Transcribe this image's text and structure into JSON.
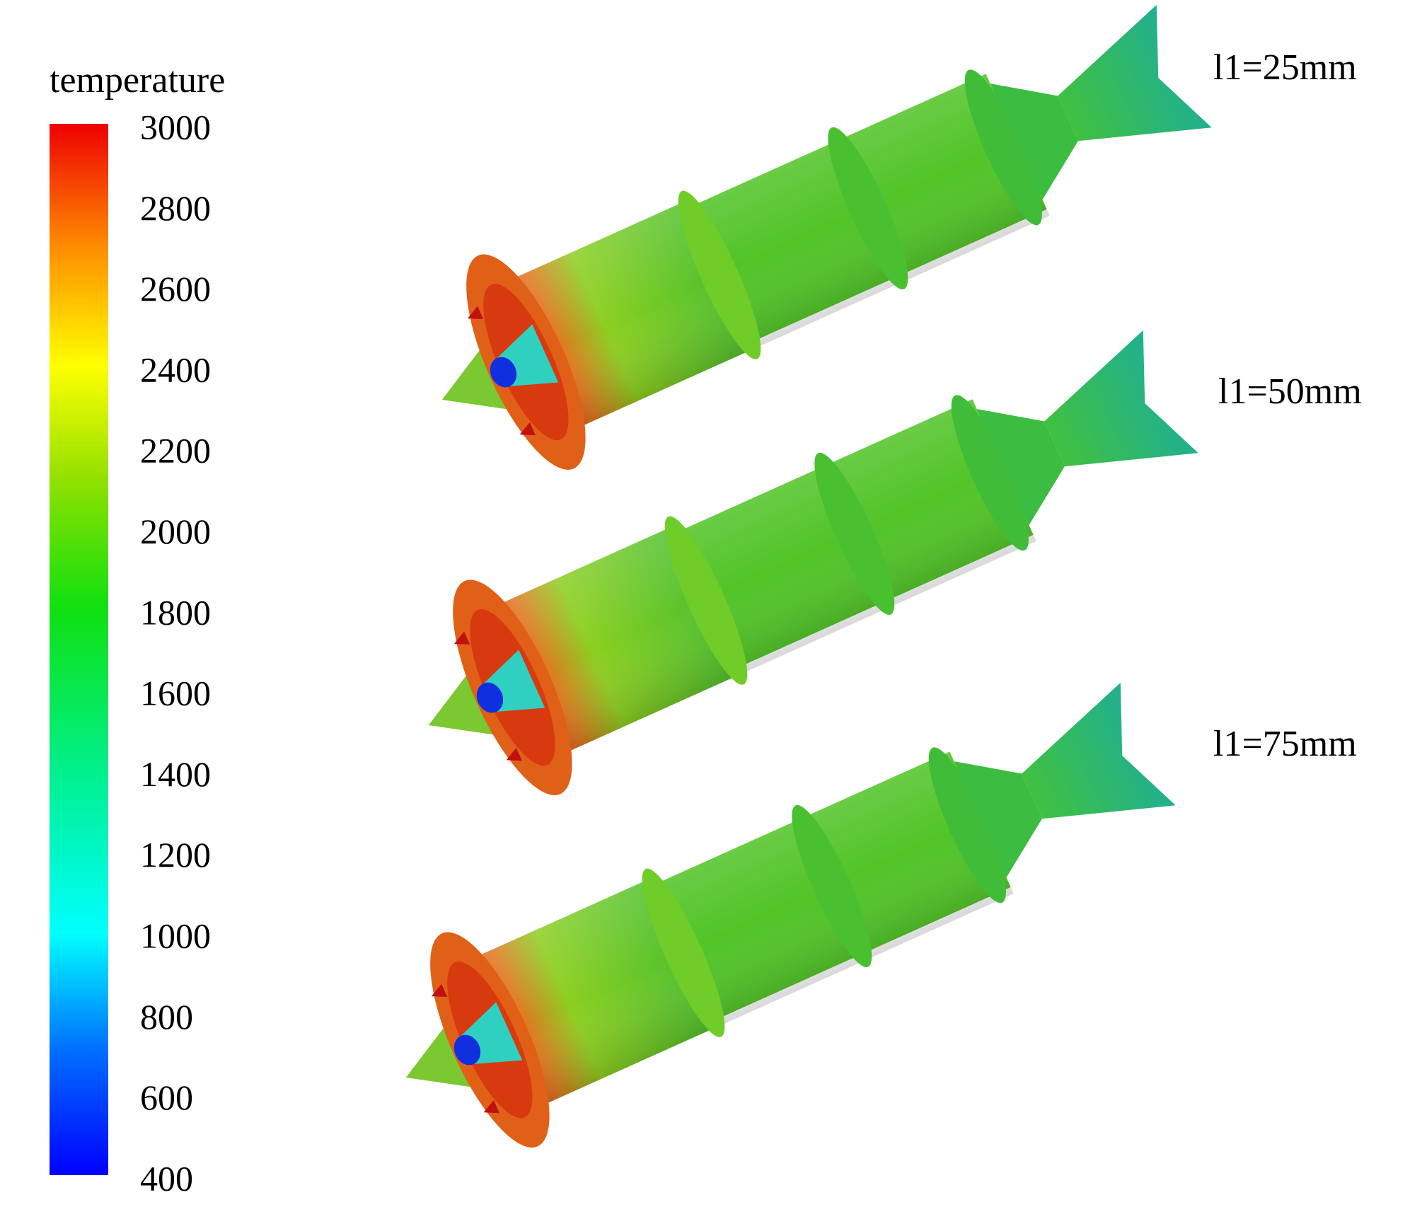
{
  "legend": {
    "title": "temperature",
    "range": [
      400,
      3000
    ],
    "ticks": [
      3000,
      2800,
      2600,
      2400,
      2200,
      2000,
      1800,
      1600,
      1400,
      1200,
      1000,
      800,
      600,
      400
    ]
  },
  "cases": [
    {
      "label": "l1=25mm"
    },
    {
      "label": "l1=50mm"
    },
    {
      "label": "l1=75mm"
    }
  ]
}
